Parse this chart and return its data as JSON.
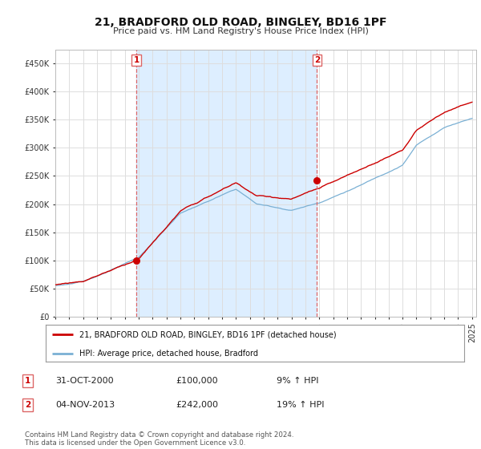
{
  "title": "21, BRADFORD OLD ROAD, BINGLEY, BD16 1PF",
  "subtitle": "Price paid vs. HM Land Registry's House Price Index (HPI)",
  "ylim": [
    0,
    475000
  ],
  "yticks": [
    0,
    50000,
    100000,
    150000,
    200000,
    250000,
    300000,
    350000,
    400000,
    450000
  ],
  "sale1_price": 100000,
  "sale2_price": 242000,
  "red_color": "#cc0000",
  "blue_color": "#7ab0d4",
  "shade_color": "#ddeeff",
  "dashed_color": "#dd6666",
  "legend_label1": "21, BRADFORD OLD ROAD, BINGLEY, BD16 1PF (detached house)",
  "legend_label2": "HPI: Average price, detached house, Bradford",
  "annotation1_date": "31-OCT-2000",
  "annotation1_price": "£100,000",
  "annotation1_hpi": "9% ↑ HPI",
  "annotation2_date": "04-NOV-2013",
  "annotation2_price": "£242,000",
  "annotation2_hpi": "19% ↑ HPI",
  "footer": "Contains HM Land Registry data © Crown copyright and database right 2024.\nThis data is licensed under the Open Government Licence v3.0.",
  "background_color": "#ffffff",
  "grid_color": "#dddddd",
  "x_start_year": 1995,
  "x_end_year": 2025
}
